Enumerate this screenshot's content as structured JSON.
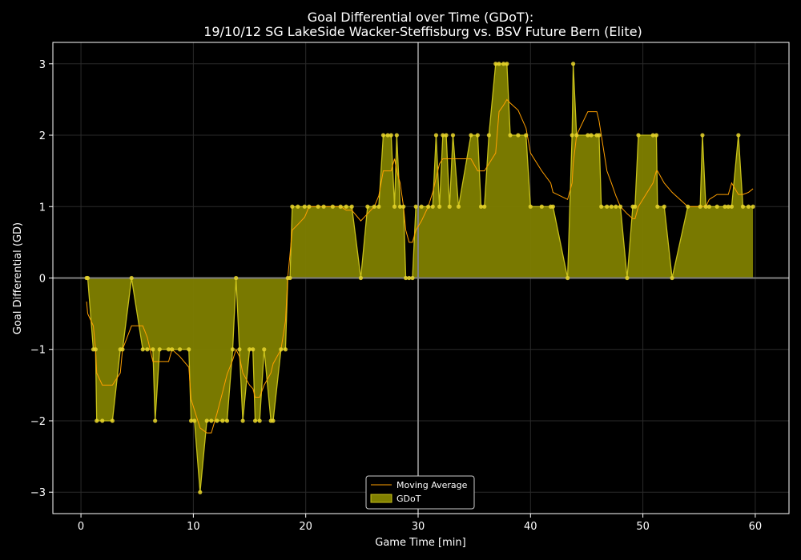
{
  "chart_data": {
    "type": "area",
    "title": "Goal Differential over Time (GDoT):",
    "subtitle": "19/10/12 SG LakeSide Wacker-Steffisburg  vs.  BSV Future Bern (Elite)",
    "xlabel": "Game Time [min]",
    "ylabel": "Goal Differential (GD)",
    "xlim": [
      -2.5,
      63
    ],
    "ylim": [
      -3.3,
      3.3
    ],
    "xticks": [
      0,
      10,
      20,
      30,
      40,
      50,
      60
    ],
    "yticks": [
      3,
      2,
      1,
      0,
      -1,
      -2,
      -3
    ],
    "ytick_labels": [
      "3",
      "2",
      "1",
      "0",
      "−1",
      "−2",
      "−3"
    ],
    "grid": true,
    "legend_position": "bottom-center",
    "vertical_reference_line_x": 30,
    "horizontal_reference_line_y": 0,
    "colors": {
      "background": "#000000",
      "gdot_fill": "#808000",
      "gdot_edge": "#c8c01a",
      "gdot_point": "#e6d32c",
      "moving_average": "#ff9f00",
      "reference_line": "#808080",
      "grid": "#2a2a2a",
      "axes": "#ffffff"
    },
    "series": [
      {
        "name": "GDoT",
        "kind": "area",
        "x": [
          0.5,
          0.6,
          1.1,
          1.3,
          1.4,
          1.9,
          2.8,
          3.5,
          3.7,
          4.5,
          5.5,
          5.9,
          6.4,
          6.6,
          7.0,
          7.8,
          8.1,
          8.8,
          9.6,
          9.8,
          10.1,
          10.6,
          11.2,
          11.6,
          12.1,
          12.6,
          13.0,
          13.5,
          13.8,
          14.1,
          14.4,
          15.0,
          15.3,
          15.5,
          15.9,
          16.3,
          16.9,
          17.1,
          17.8,
          18.2,
          18.4,
          18.6,
          18.8,
          19.3,
          19.9,
          20.3,
          21.1,
          21.6,
          22.4,
          23.1,
          23.6,
          24.1,
          24.9,
          25.5,
          26.1,
          26.5,
          26.9,
          27.3,
          27.6,
          27.9,
          28.1,
          28.4,
          28.7,
          28.9,
          29.2,
          29.5,
          29.8,
          30.3,
          30.9,
          31.3,
          31.6,
          31.9,
          32.2,
          32.5,
          32.8,
          33.1,
          33.6,
          34.7,
          35.3,
          35.6,
          35.9,
          36.3,
          36.9,
          37.2,
          37.6,
          37.9,
          38.2,
          38.9,
          39.6,
          40.0,
          41.0,
          41.8,
          42.0,
          43.3,
          43.7,
          43.8,
          44.1,
          45.1,
          45.4,
          45.9,
          46.1,
          46.3,
          46.8,
          47.2,
          47.6,
          48.0,
          48.6,
          49.1,
          49.3,
          49.6,
          50.9,
          51.2,
          51.3,
          51.9,
          52.6,
          54.0,
          55.1,
          55.3,
          55.6,
          55.9,
          56.6,
          57.3,
          57.6,
          57.9,
          58.5,
          58.9,
          59.4,
          59.8
        ],
        "y": [
          0,
          0,
          -1,
          -1,
          -2,
          -2,
          -2,
          -1,
          -1,
          0,
          -1,
          -1,
          -1,
          -2,
          -1,
          -1,
          -1,
          -1,
          -1,
          -2,
          -2,
          -3,
          -2,
          -2,
          -2,
          -2,
          -2,
          -1,
          0,
          -1,
          -2,
          -1,
          -1,
          -2,
          -2,
          -1,
          -2,
          -2,
          -1,
          -1,
          0,
          0,
          1,
          1,
          1,
          1,
          1,
          1,
          1,
          1,
          1,
          1,
          0,
          1,
          1,
          1,
          2,
          2,
          2,
          1,
          2,
          1,
          1,
          0,
          0,
          0,
          1,
          1,
          1,
          1,
          2,
          1,
          2,
          2,
          1,
          2,
          1,
          2,
          2,
          1,
          1,
          2,
          3,
          3,
          3,
          3,
          2,
          2,
          2,
          1,
          1,
          1,
          1,
          0,
          2,
          3,
          2,
          2,
          2,
          2,
          2,
          1,
          1,
          1,
          1,
          1,
          0,
          1,
          1,
          2,
          2,
          2,
          1,
          1,
          0,
          1,
          1,
          2,
          1,
          1,
          1,
          1,
          1,
          1,
          2,
          1,
          1,
          1
        ]
      },
      {
        "name": "Moving Average",
        "kind": "line",
        "x": [
          0.5,
          0.6,
          1.1,
          1.3,
          1.4,
          1.9,
          2.8,
          3.5,
          3.7,
          4.5,
          5.5,
          5.9,
          6.4,
          6.6,
          7.0,
          7.8,
          8.1,
          8.8,
          9.6,
          9.8,
          10.1,
          10.6,
          11.2,
          11.6,
          12.1,
          12.6,
          13.0,
          13.5,
          13.8,
          14.1,
          14.4,
          15.0,
          15.3,
          15.5,
          15.9,
          16.3,
          16.9,
          17.1,
          17.8,
          18.2,
          18.4,
          18.6,
          18.8,
          19.3,
          19.9,
          20.3,
          21.1,
          21.6,
          22.4,
          23.1,
          23.6,
          24.1,
          24.9,
          25.5,
          26.1,
          26.5,
          26.9,
          27.3,
          27.6,
          27.9,
          28.1,
          28.4,
          28.7,
          28.9,
          29.2,
          29.5,
          29.8,
          30.3,
          30.9,
          31.3,
          31.6,
          31.9,
          32.2,
          32.5,
          32.8,
          33.1,
          33.6,
          34.7,
          35.3,
          35.6,
          35.9,
          36.3,
          36.9,
          37.2,
          37.6,
          37.9,
          38.2,
          38.9,
          39.6,
          40.0,
          41.0,
          41.8,
          42.0,
          43.3,
          43.7,
          43.8,
          44.1,
          45.1,
          45.4,
          45.9,
          46.1,
          46.3,
          46.8,
          47.2,
          47.6,
          48.0,
          48.6,
          49.1,
          49.3,
          49.6,
          50.9,
          51.2,
          51.3,
          51.9,
          52.6,
          54.0,
          55.1,
          55.3,
          55.6,
          55.9,
          56.6,
          57.3,
          57.6,
          57.9,
          58.5,
          58.9,
          59.4,
          59.8
        ],
        "y": [
          -0.33,
          -0.5,
          -0.67,
          -1.0,
          -1.33,
          -1.5,
          -1.5,
          -1.33,
          -1.0,
          -0.67,
          -0.67,
          -0.83,
          -1.17,
          -1.17,
          -1.17,
          -1.17,
          -1.0,
          -1.1,
          -1.25,
          -1.7,
          -1.85,
          -2.1,
          -2.17,
          -2.17,
          -1.9,
          -1.6,
          -1.35,
          -1.15,
          -1.0,
          -1.1,
          -1.33,
          -1.5,
          -1.55,
          -1.67,
          -1.67,
          -1.5,
          -1.33,
          -1.2,
          -1.0,
          -0.6,
          0.0,
          0.33,
          0.67,
          0.75,
          0.85,
          1.0,
          1.0,
          1.0,
          1.0,
          1.0,
          0.95,
          0.95,
          0.8,
          0.9,
          1.0,
          1.15,
          1.5,
          1.5,
          1.5,
          1.67,
          1.5,
          1.33,
          1.0,
          0.67,
          0.5,
          0.5,
          0.67,
          0.8,
          1.0,
          1.2,
          1.4,
          1.6,
          1.67,
          1.67,
          1.67,
          1.67,
          1.67,
          1.67,
          1.5,
          1.5,
          1.5,
          1.6,
          1.75,
          2.33,
          2.42,
          2.5,
          2.45,
          2.35,
          2.1,
          1.75,
          1.5,
          1.33,
          1.2,
          1.1,
          1.33,
          1.6,
          2.0,
          2.33,
          2.33,
          2.33,
          2.2,
          2.0,
          1.5,
          1.33,
          1.15,
          1.0,
          0.9,
          0.83,
          0.83,
          1.0,
          1.33,
          1.5,
          1.5,
          1.33,
          1.2,
          1.0,
          1.0,
          1.0,
          1.0,
          1.1,
          1.17,
          1.17,
          1.17,
          1.33,
          1.17,
          1.17,
          1.2,
          1.25
        ]
      }
    ]
  }
}
